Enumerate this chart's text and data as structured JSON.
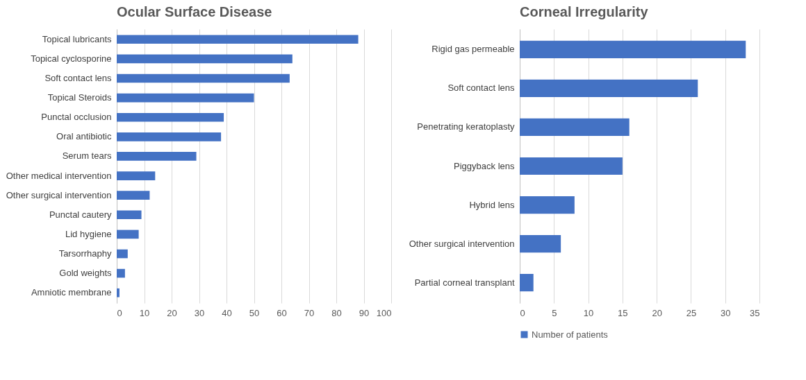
{
  "chart_data": [
    {
      "type": "bar",
      "orientation": "horizontal",
      "title": "Ocular Surface Disease",
      "categories": [
        "Topical lubricants",
        "Topical cyclosporine",
        "Soft contact lens",
        "Topical Steroids",
        "Punctal occlusion",
        "Oral antibiotic",
        "Serum tears",
        "Other medical intervention",
        "Other surgical intervention",
        "Punctal cautery",
        "Lid hygiene",
        "Tarsorrhaphy",
        "Gold weights",
        "Amniotic membrane"
      ],
      "series": [
        {
          "color": "#4472c4",
          "values": [
            88,
            64,
            63,
            50,
            39,
            38,
            29,
            14,
            12,
            9,
            8,
            4,
            3,
            1
          ]
        }
      ],
      "xlim": [
        0,
        100
      ],
      "xticks": [
        0,
        10,
        20,
        30,
        40,
        50,
        60,
        70,
        80,
        90,
        100
      ],
      "grid": "x"
    },
    {
      "type": "bar",
      "orientation": "horizontal",
      "title": "Corneal Irregularity",
      "categories": [
        "Rigid gas permeable",
        "Soft contact lens",
        "Penetrating keratoplasty",
        "Piggyback lens",
        "Hybrid lens",
        "Other surgical intervention",
        "Partial corneal transplant"
      ],
      "series": [
        {
          "name": "Number of patients",
          "color": "#4472c4",
          "values": [
            33,
            26,
            16,
            15,
            8,
            6,
            2
          ]
        }
      ],
      "xlim": [
        0,
        35
      ],
      "xticks": [
        0,
        5,
        10,
        15,
        20,
        25,
        30,
        35
      ],
      "grid": "x",
      "legend": "bottom"
    }
  ]
}
